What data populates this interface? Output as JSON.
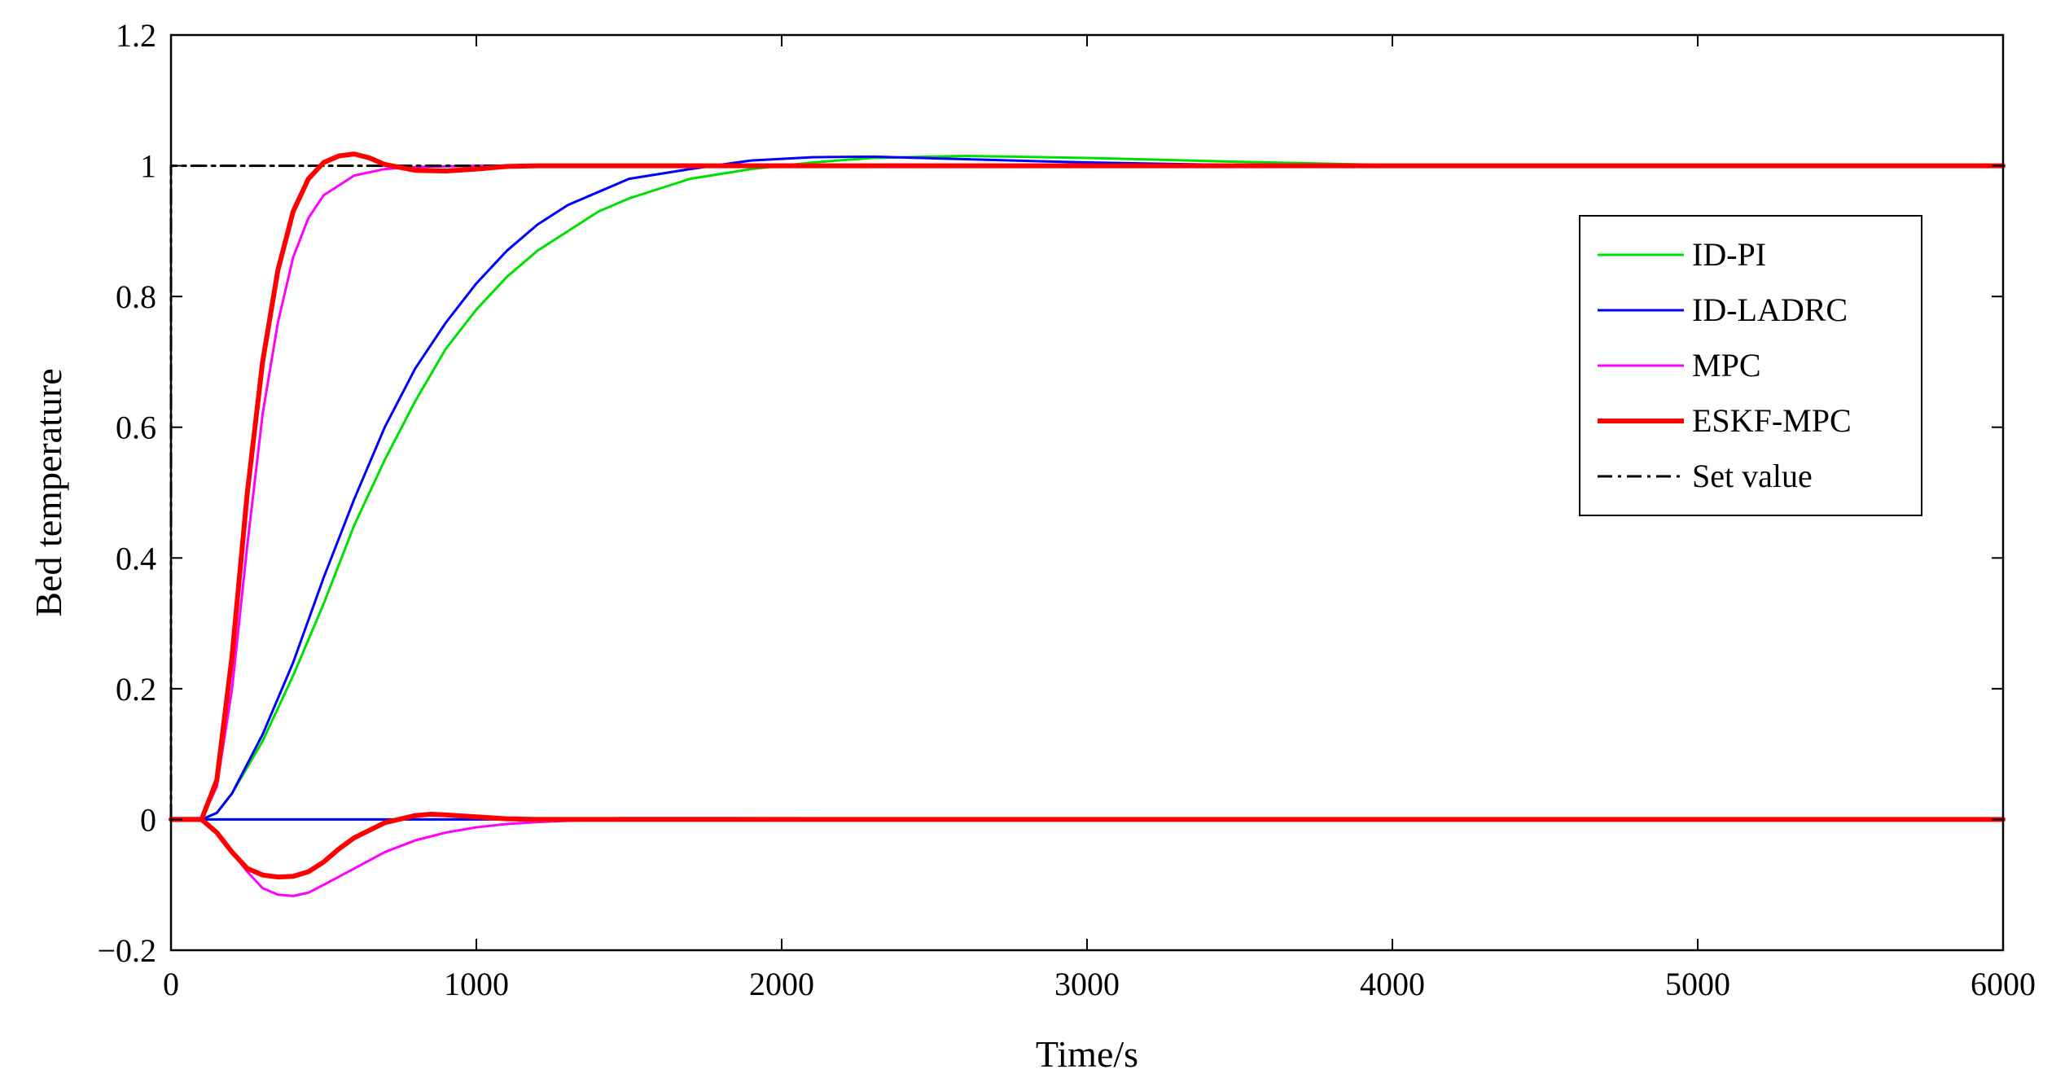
{
  "chart_data": {
    "type": "line",
    "title": "",
    "xlabel": "Time/s",
    "ylabel": "Bed temperature",
    "xlim": [
      0,
      6000
    ],
    "ylim": [
      -0.2,
      1.2
    ],
    "xticks": [
      0,
      1000,
      2000,
      3000,
      4000,
      5000,
      6000
    ],
    "yticks": [
      -0.2,
      0,
      0.2,
      0.4,
      0.6,
      0.8,
      1,
      1.2
    ],
    "xtick_labels": [
      "0",
      "1000",
      "2000",
      "3000",
      "4000",
      "5000",
      "6000"
    ],
    "ytick_labels": [
      "−0.2",
      "0",
      "0.2",
      "0.4",
      "0.6",
      "0.8",
      "1",
      "1.2"
    ],
    "grid": false,
    "legend_position": "top-right",
    "series": [
      {
        "name": "ID-PI",
        "color": "#00e000",
        "points": [
          [
            0,
            0
          ],
          [
            100,
            0
          ],
          [
            150,
            0.01
          ],
          [
            200,
            0.04
          ],
          [
            300,
            0.12
          ],
          [
            400,
            0.22
          ],
          [
            500,
            0.33
          ],
          [
            600,
            0.45
          ],
          [
            700,
            0.55
          ],
          [
            800,
            0.64
          ],
          [
            900,
            0.72
          ],
          [
            1000,
            0.78
          ],
          [
            1100,
            0.83
          ],
          [
            1200,
            0.87
          ],
          [
            1300,
            0.9
          ],
          [
            1400,
            0.93
          ],
          [
            1500,
            0.95
          ],
          [
            1700,
            0.98
          ],
          [
            1900,
            0.995
          ],
          [
            2100,
            1.005
          ],
          [
            2300,
            1.012
          ],
          [
            2600,
            1.015
          ],
          [
            3000,
            1.012
          ],
          [
            3500,
            1.006
          ],
          [
            4000,
            1.001
          ],
          [
            6000,
            1.0
          ]
        ]
      },
      {
        "name": "ID-LADRC",
        "color": "#0000ff",
        "points": [
          [
            0,
            0
          ],
          [
            100,
            0
          ],
          [
            150,
            0.01
          ],
          [
            200,
            0.04
          ],
          [
            300,
            0.13
          ],
          [
            400,
            0.24
          ],
          [
            500,
            0.37
          ],
          [
            600,
            0.49
          ],
          [
            700,
            0.6
          ],
          [
            800,
            0.69
          ],
          [
            900,
            0.76
          ],
          [
            1000,
            0.82
          ],
          [
            1100,
            0.87
          ],
          [
            1200,
            0.91
          ],
          [
            1300,
            0.94
          ],
          [
            1400,
            0.96
          ],
          [
            1500,
            0.98
          ],
          [
            1700,
            0.995
          ],
          [
            1900,
            1.008
          ],
          [
            2100,
            1.013
          ],
          [
            2300,
            1.014
          ],
          [
            2600,
            1.01
          ],
          [
            3000,
            1.005
          ],
          [
            3500,
            1.001
          ],
          [
            6000,
            1.0
          ]
        ]
      },
      {
        "name": "MPC",
        "color": "#ff00ff",
        "points": [
          [
            0,
            0
          ],
          [
            100,
            0
          ],
          [
            150,
            0.05
          ],
          [
            200,
            0.2
          ],
          [
            250,
            0.42
          ],
          [
            300,
            0.62
          ],
          [
            350,
            0.76
          ],
          [
            400,
            0.86
          ],
          [
            450,
            0.92
          ],
          [
            500,
            0.955
          ],
          [
            600,
            0.985
          ],
          [
            700,
            0.995
          ],
          [
            800,
            0.998
          ],
          [
            1000,
            1.0
          ],
          [
            6000,
            1.0
          ]
        ]
      },
      {
        "name": "ESKF-MPC",
        "color": "#ff0000",
        "points": [
          [
            0,
            0
          ],
          [
            100,
            0
          ],
          [
            150,
            0.06
          ],
          [
            200,
            0.25
          ],
          [
            250,
            0.5
          ],
          [
            300,
            0.7
          ],
          [
            350,
            0.84
          ],
          [
            400,
            0.93
          ],
          [
            450,
            0.98
          ],
          [
            500,
            1.005
          ],
          [
            550,
            1.015
          ],
          [
            600,
            1.018
          ],
          [
            650,
            1.012
          ],
          [
            700,
            1.002
          ],
          [
            800,
            0.993
          ],
          [
            900,
            0.992
          ],
          [
            1000,
            0.995
          ],
          [
            1100,
            0.999
          ],
          [
            1200,
            1.0
          ],
          [
            6000,
            1.0
          ]
        ]
      },
      {
        "name": "Set value",
        "color": "#000000",
        "points": [
          [
            0,
            0
          ],
          [
            0,
            1
          ],
          [
            6000,
            1
          ]
        ]
      }
    ],
    "lower_series": [
      {
        "name": "ID-PI",
        "color": "#00e000",
        "points": [
          [
            0,
            0
          ],
          [
            6000,
            0
          ]
        ]
      },
      {
        "name": "ID-LADRC",
        "color": "#0000ff",
        "points": [
          [
            0,
            0
          ],
          [
            1000,
            0
          ],
          [
            1500,
            0.002
          ],
          [
            6000,
            0
          ]
        ]
      },
      {
        "name": "MPC",
        "color": "#ff00ff",
        "points": [
          [
            0,
            0
          ],
          [
            100,
            0
          ],
          [
            150,
            -0.02
          ],
          [
            200,
            -0.05
          ],
          [
            250,
            -0.08
          ],
          [
            300,
            -0.105
          ],
          [
            350,
            -0.115
          ],
          [
            400,
            -0.117
          ],
          [
            450,
            -0.112
          ],
          [
            500,
            -0.1
          ],
          [
            600,
            -0.075
          ],
          [
            700,
            -0.05
          ],
          [
            800,
            -0.032
          ],
          [
            900,
            -0.02
          ],
          [
            1000,
            -0.012
          ],
          [
            1100,
            -0.007
          ],
          [
            1200,
            -0.004
          ],
          [
            1300,
            -0.002
          ],
          [
            1500,
            0
          ],
          [
            6000,
            0
          ]
        ]
      },
      {
        "name": "ESKF-MPC",
        "color": "#ff0000",
        "points": [
          [
            0,
            0
          ],
          [
            100,
            0
          ],
          [
            150,
            -0.02
          ],
          [
            200,
            -0.05
          ],
          [
            250,
            -0.075
          ],
          [
            300,
            -0.085
          ],
          [
            350,
            -0.088
          ],
          [
            400,
            -0.087
          ],
          [
            450,
            -0.08
          ],
          [
            500,
            -0.065
          ],
          [
            550,
            -0.045
          ],
          [
            600,
            -0.028
          ],
          [
            700,
            -0.005
          ],
          [
            800,
            0.006
          ],
          [
            850,
            0.008
          ],
          [
            900,
            0.007
          ],
          [
            1000,
            0.004
          ],
          [
            1100,
            0.001
          ],
          [
            1200,
            0
          ],
          [
            6000,
            0
          ]
        ]
      }
    ]
  }
}
